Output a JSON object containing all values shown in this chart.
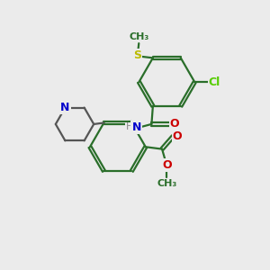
{
  "bg_color": "#ebebeb",
  "bond_color": "#2a6e2a",
  "bond_width": 1.6,
  "dbo": 0.055,
  "atom_colors": {
    "C": "#2a6e2a",
    "N": "#0000cc",
    "O": "#cc0000",
    "S": "#bbbb00",
    "Cl": "#55cc00",
    "H": "#888888"
  },
  "fs": 8.5
}
